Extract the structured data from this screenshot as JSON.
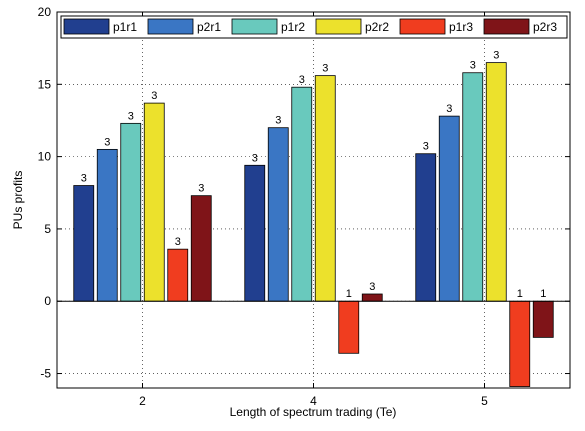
{
  "chart_data": {
    "type": "bar",
    "title": "",
    "xlabel": "Length of spectrum trading (Te)",
    "ylabel": "PUs profits",
    "categories": [
      "2",
      "4",
      "5"
    ],
    "ylim": [
      -6,
      20
    ],
    "yticks": [
      -5,
      0,
      5,
      10,
      15,
      20
    ],
    "grid": true,
    "legend_position": "top",
    "series": [
      {
        "name": "p1r1",
        "color": "#213f8f",
        "values": [
          8.0,
          9.4,
          10.2
        ],
        "labels": [
          "3",
          "3",
          "3"
        ]
      },
      {
        "name": "p2r1",
        "color": "#3a76c4",
        "values": [
          10.5,
          12.0,
          12.8
        ],
        "labels": [
          "3",
          "3",
          "3"
        ]
      },
      {
        "name": "p1r2",
        "color": "#69c9bd",
        "values": [
          12.3,
          14.8,
          15.8
        ],
        "labels": [
          "3",
          "3",
          "3"
        ]
      },
      {
        "name": "p2r2",
        "color": "#ece12c",
        "values": [
          13.7,
          15.6,
          16.5
        ],
        "labels": [
          "3",
          "3",
          "3"
        ]
      },
      {
        "name": "p1r3",
        "color": "#f03d1f",
        "values": [
          3.6,
          -3.6,
          -5.9
        ],
        "labels": [
          "3",
          "1",
          "1"
        ]
      },
      {
        "name": "p2r3",
        "color": "#7f1418",
        "values": [
          7.3,
          0.5,
          -2.5
        ],
        "labels": [
          "3",
          "3",
          "1"
        ]
      }
    ]
  }
}
